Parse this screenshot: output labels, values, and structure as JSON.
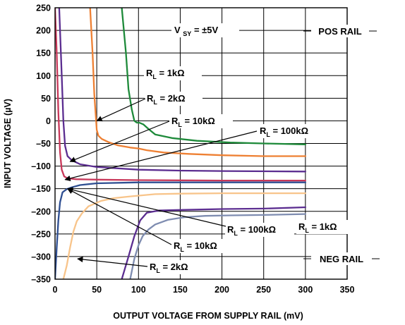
{
  "chart_data": {
    "type": "line",
    "xlabel": "OUTPUT VOLTAGE FROM SUPPLY RAIL (mV)",
    "ylabel": "INPUT VOLTAGE (µV)",
    "xlim": [
      0,
      350
    ],
    "ylim": [
      -350,
      250
    ],
    "xticks": [
      0,
      50,
      100,
      150,
      200,
      250,
      300,
      350
    ],
    "yticks": [
      250,
      200,
      150,
      100,
      50,
      0,
      -50,
      -100,
      -150,
      -200,
      -250,
      -300,
      -350
    ],
    "ytick_labels": [
      "250",
      "200",
      "150",
      "100",
      "50",
      "0",
      "–50",
      "–100",
      "–150",
      "–200",
      "–250",
      "–300",
      "–350"
    ],
    "grid": true,
    "annotations": {
      "supply": {
        "main": "V",
        "sub": "SY",
        "rest": " = ±5V"
      },
      "pos_rail": "POS RAIL",
      "neg_rail": "NEG RAIL",
      "rl_prefix": "R",
      "rl_sub": "L",
      "labels": [
        {
          "id": "pos-1k",
          "value": " = 1kΩ"
        },
        {
          "id": "pos-2k",
          "value": " = 2kΩ"
        },
        {
          "id": "pos-10k",
          "value": " = 10kΩ"
        },
        {
          "id": "pos-100k",
          "value": " = 100kΩ"
        },
        {
          "id": "neg-100k",
          "value": " = 100kΩ"
        },
        {
          "id": "neg-1k",
          "value": " = 1kΩ"
        },
        {
          "id": "neg-10k",
          "value": " = 10kΩ"
        },
        {
          "id": "neg-2k",
          "value": " = 2kΩ"
        }
      ]
    },
    "series": [
      {
        "rail": "pos",
        "load": "1kΩ",
        "color": "#1e8a3a",
        "points": [
          [
            80,
            250
          ],
          [
            85,
            150
          ],
          [
            88,
            70
          ],
          [
            92,
            25
          ],
          [
            95,
            0
          ],
          [
            98,
            -4
          ],
          [
            101,
            -4
          ],
          [
            106,
            -8
          ],
          [
            112,
            -18
          ],
          [
            120,
            -30
          ],
          [
            140,
            -38
          ],
          [
            170,
            -44
          ],
          [
            210,
            -48
          ],
          [
            250,
            -50
          ],
          [
            300,
            -52
          ]
        ]
      },
      {
        "rail": "pos",
        "load": "2kΩ",
        "color": "#ee8033",
        "points": [
          [
            42,
            250
          ],
          [
            45,
            150
          ],
          [
            47,
            60
          ],
          [
            49,
            5
          ],
          [
            50,
            -20
          ],
          [
            52,
            -33
          ],
          [
            56,
            -40
          ],
          [
            64,
            -47
          ],
          [
            75,
            -54
          ],
          [
            90,
            -59
          ],
          [
            100,
            -61
          ],
          [
            110,
            -65
          ],
          [
            130,
            -70
          ],
          [
            160,
            -73
          ],
          [
            200,
            -76
          ],
          [
            250,
            -78
          ],
          [
            300,
            -78
          ]
        ]
      },
      {
        "rail": "pos",
        "load": "10kΩ",
        "color": "#5b2d90",
        "points": [
          [
            5,
            250
          ],
          [
            8,
            100
          ],
          [
            10,
            0
          ],
          [
            12,
            -55
          ],
          [
            15,
            -78
          ],
          [
            20,
            -87
          ],
          [
            30,
            -96
          ],
          [
            50,
            -102
          ],
          [
            100,
            -108
          ],
          [
            150,
            -110
          ],
          [
            200,
            -111
          ],
          [
            300,
            -112
          ]
        ]
      },
      {
        "rail": "pos",
        "load": "100kΩ",
        "color": "#c8385a",
        "points": [
          [
            0,
            250
          ],
          [
            2,
            150
          ],
          [
            4,
            20
          ],
          [
            6,
            -70
          ],
          [
            8,
            -108
          ],
          [
            11,
            -123
          ],
          [
            15,
            -127
          ],
          [
            25,
            -129
          ],
          [
            50,
            -130
          ],
          [
            100,
            -131
          ],
          [
            200,
            -132
          ],
          [
            300,
            -132
          ]
        ]
      },
      {
        "rail": "neg",
        "load": "100kΩ",
        "color": "#2f4f92",
        "points": [
          [
            0,
            -350
          ],
          [
            2,
            -280
          ],
          [
            4,
            -220
          ],
          [
            6,
            -180
          ],
          [
            9,
            -158
          ],
          [
            14,
            -151
          ],
          [
            20,
            -147
          ],
          [
            30,
            -142
          ],
          [
            50,
            -138
          ],
          [
            100,
            -136
          ],
          [
            200,
            -136
          ],
          [
            300,
            -136
          ]
        ]
      },
      {
        "rail": "neg",
        "load": "10kΩ",
        "color": "#5b2d90",
        "points": [
          [
            80,
            -350
          ],
          [
            88,
            -300
          ],
          [
            95,
            -255
          ],
          [
            102,
            -220
          ],
          [
            110,
            -203
          ],
          [
            125,
            -198
          ],
          [
            150,
            -197
          ],
          [
            175,
            -196
          ],
          [
            200,
            -195
          ],
          [
            250,
            -194
          ],
          [
            300,
            -191
          ]
        ]
      },
      {
        "rail": "neg",
        "load": "1kΩ",
        "color": "#7e8cb0",
        "points": [
          [
            90,
            -350
          ],
          [
            95,
            -305
          ],
          [
            100,
            -275
          ],
          [
            105,
            -255
          ],
          [
            112,
            -240
          ],
          [
            120,
            -229
          ],
          [
            135,
            -219
          ],
          [
            155,
            -213
          ],
          [
            180,
            -210
          ],
          [
            210,
            -209
          ],
          [
            250,
            -208
          ],
          [
            300,
            -206
          ]
        ]
      },
      {
        "rail": "neg",
        "load": "2kΩ",
        "color": "#f8c48a",
        "points": [
          [
            10,
            -350
          ],
          [
            14,
            -320
          ],
          [
            18,
            -280
          ],
          [
            22,
            -245
          ],
          [
            26,
            -222
          ],
          [
            32,
            -205
          ],
          [
            40,
            -189
          ],
          [
            55,
            -177
          ],
          [
            70,
            -171
          ],
          [
            90,
            -167
          ],
          [
            120,
            -162
          ],
          [
            150,
            -161
          ],
          [
            200,
            -160
          ],
          [
            300,
            -160
          ]
        ]
      }
    ]
  }
}
